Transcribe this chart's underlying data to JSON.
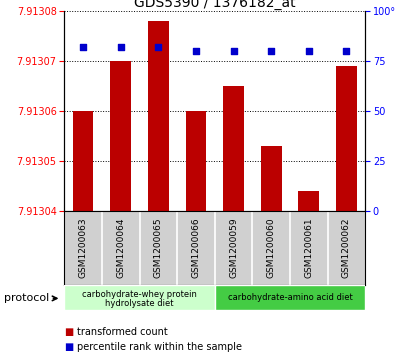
{
  "title": "GDS5390 / 1376182_at",
  "samples": [
    "GSM1200063",
    "GSM1200064",
    "GSM1200065",
    "GSM1200066",
    "GSM1200059",
    "GSM1200060",
    "GSM1200061",
    "GSM1200062"
  ],
  "red_values": [
    7.91306,
    7.91307,
    7.913078,
    7.91306,
    7.913065,
    7.913053,
    7.913044,
    7.913069
  ],
  "blue_values": [
    82,
    82,
    82,
    80,
    80,
    80,
    80,
    80
  ],
  "ylim_left": [
    7.91304,
    7.91308
  ],
  "ylim_right": [
    0,
    100
  ],
  "yticks_left": [
    7.91304,
    7.91305,
    7.91306,
    7.91307,
    7.91308
  ],
  "yticks_right": [
    0,
    25,
    50,
    75,
    100
  ],
  "bar_color": "#bb0000",
  "dot_color": "#0000cc",
  "sample_bg_color": "#d0d0d0",
  "sample_div_color": "#ffffff",
  "group1_label_line1": "carbohydrate-whey protein",
  "group1_label_line2": "hydrolysate diet",
  "group2_label": "carbohydrate-amino acid diet",
  "group1_color": "#ccffcc",
  "group2_color": "#44cc44",
  "legend_red": "transformed count",
  "legend_blue": "percentile rank within the sample",
  "protocol_label": "protocol"
}
